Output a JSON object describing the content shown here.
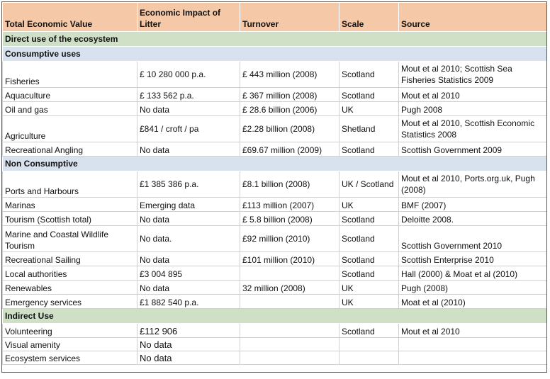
{
  "columns": [
    "Total Economic Value",
    "Economic Impact of Litter",
    "Turnover",
    "Scale",
    "Source"
  ],
  "sections": {
    "direct": "Direct use of the ecosystem",
    "consumptive": "Consumptive uses",
    "non_consumptive": "Non Consumptive",
    "indirect": "Indirect Use"
  },
  "consumptive_rows": [
    {
      "value": "Fisheries",
      "impact": "£ 10 280 000 p.a.",
      "turnover": "£ 443 million (2008)",
      "scale": "Scotland",
      "source": "Mout et al 2010; Scottish Sea Fisheries  Statistics 2009"
    },
    {
      "value": "Aquaculture",
      "impact": "£ 133 562 p.a.",
      "turnover": "£ 367 million (2008)",
      "scale": "Scotland",
      "source": "Mout et al 2010"
    },
    {
      "value": "Oil and gas",
      "impact": "No data",
      "turnover": "£ 28.6 billion (2006)",
      "scale": "UK",
      "source": "Pugh 2008"
    },
    {
      "value": "Agriculture",
      "impact": "£841 / croft / pa",
      "turnover": "£2.28 billion (2008)",
      "scale": "Shetland",
      "source": "Mout et al 2010, Scottish Economic Statistics 2008"
    },
    {
      "value": "Recreational Angling",
      "impact": "No data",
      "turnover": "£69.67 million (2009)",
      "scale": "Scotland",
      "source": "Scottish Government 2009"
    }
  ],
  "non_consumptive_rows": [
    {
      "value": "Ports and Harbours",
      "impact": "£1 385 386 p.a.",
      "turnover": "£8.1 billion (2008)",
      "scale": "UK / Scotland",
      "source": "Mout et al 2010, Ports.org.uk, Pugh (2008)"
    },
    {
      "value": "Marinas",
      "impact": "Emerging data",
      "turnover": "£113 million (2007)",
      "scale": "UK",
      "source": "BMF (2007)"
    },
    {
      "value": "Tourism (Scottish total)",
      "impact": "No data",
      "turnover": "£ 5.8 billion (2008)",
      "scale": "Scotland",
      "source": "Deloitte 2008."
    },
    {
      "value": "Marine and Coastal Wildlife Tourism",
      "impact": "No data.",
      "turnover": "£92 million (2010)",
      "scale": "Scotland",
      "source": "Scottish Government 2010"
    },
    {
      "value": "Recreational Sailing",
      "impact": "No data",
      "turnover": "£101 million (2010)",
      "scale": "Scotland",
      "source": "Scottish Enterprise 2010"
    },
    {
      "value": "Local authorities",
      "impact": "£3 004 895",
      "turnover": "",
      "scale": "Scotland",
      "source": "Hall (2000) & Moat  et al (2010)"
    },
    {
      "value": "Renewables",
      "impact": "No data",
      "turnover": "32 million (2008)",
      "scale": "UK",
      "source": "Pugh (2008)"
    },
    {
      "value": "Emergency services",
      "impact": "£1 882 540 p.a.",
      "turnover": "",
      "scale": "UK",
      "source": "Moat  et al (2010)"
    }
  ],
  "indirect_rows": [
    {
      "value": "Volunteering",
      "impact": "£112 906",
      "turnover": "",
      "scale": "Scotland",
      "source": "Mout et al 2010"
    },
    {
      "value": "Visual amenity",
      "impact": "No data",
      "turnover": "",
      "scale": "",
      "source": ""
    },
    {
      "value": "Ecosystem services",
      "impact": "No data",
      "turnover": "",
      "scale": "",
      "source": ""
    }
  ]
}
